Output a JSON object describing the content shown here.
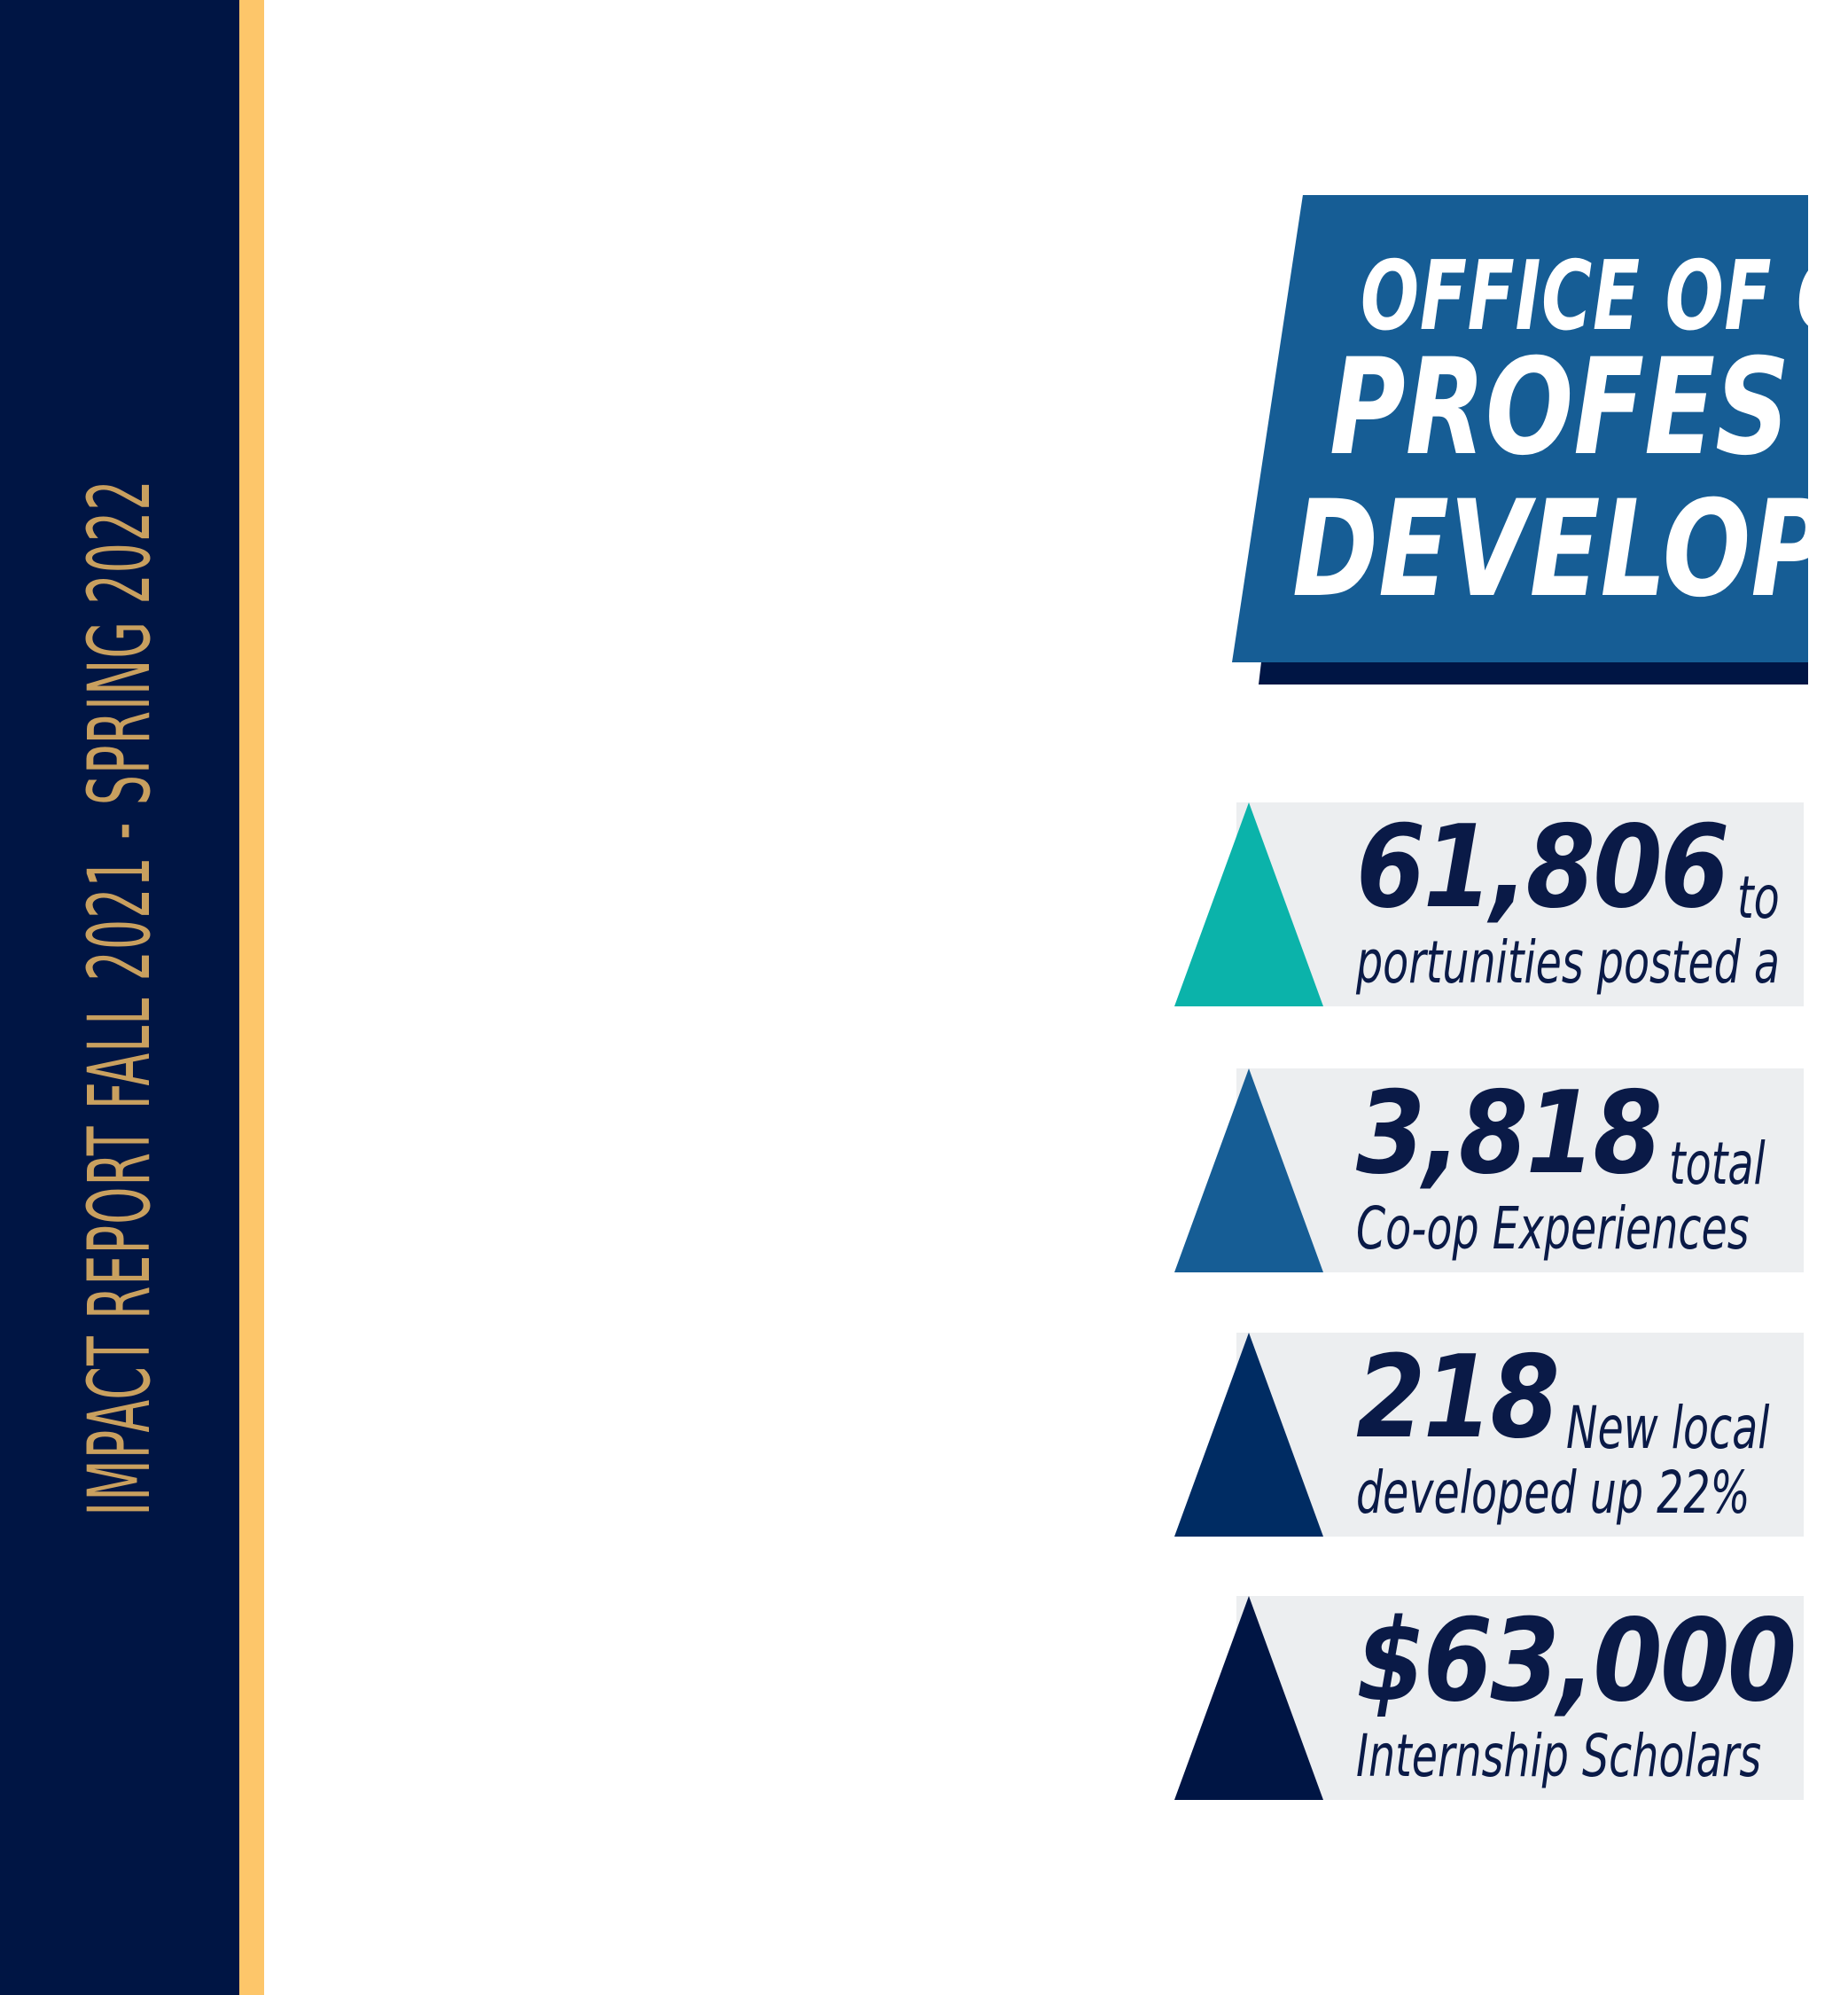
{
  "colors": {
    "navy": "#001544",
    "gold_stripe": "#fdc66a",
    "gold_text": "#c9a05f",
    "banner_blue": "#165d95",
    "banner_shadow": "#001544",
    "panel_gray": "#eceef0",
    "text_navy": "#0a1a47",
    "tri_teal": "#0bb3aa",
    "tri_blue": "#165d95",
    "tri_darkblue": "#002c63",
    "tri_navy": "#001544"
  },
  "side": {
    "title": "IMPACT REPORT FALL 2021 - SPRING 2022"
  },
  "banner": {
    "line1": "OFFICE OF C",
    "line2": "PROFES",
    "line3": "DEVELOP"
  },
  "stats": [
    {
      "number": "61,806",
      "suffix": "to",
      "line2": "portunities posted a",
      "triangle_color": "#0bb3aa"
    },
    {
      "number": "3,818",
      "suffix": "total",
      "line2": "Co-op Experiences",
      "triangle_color": "#165d95"
    },
    {
      "number": "218",
      "suffix": "New local",
      "line2": "developed up 22%",
      "triangle_color": "#002c63"
    },
    {
      "number": "$63,000",
      "suffix": "",
      "line2": "Internship Scholars",
      "triangle_color": "#001544"
    }
  ]
}
